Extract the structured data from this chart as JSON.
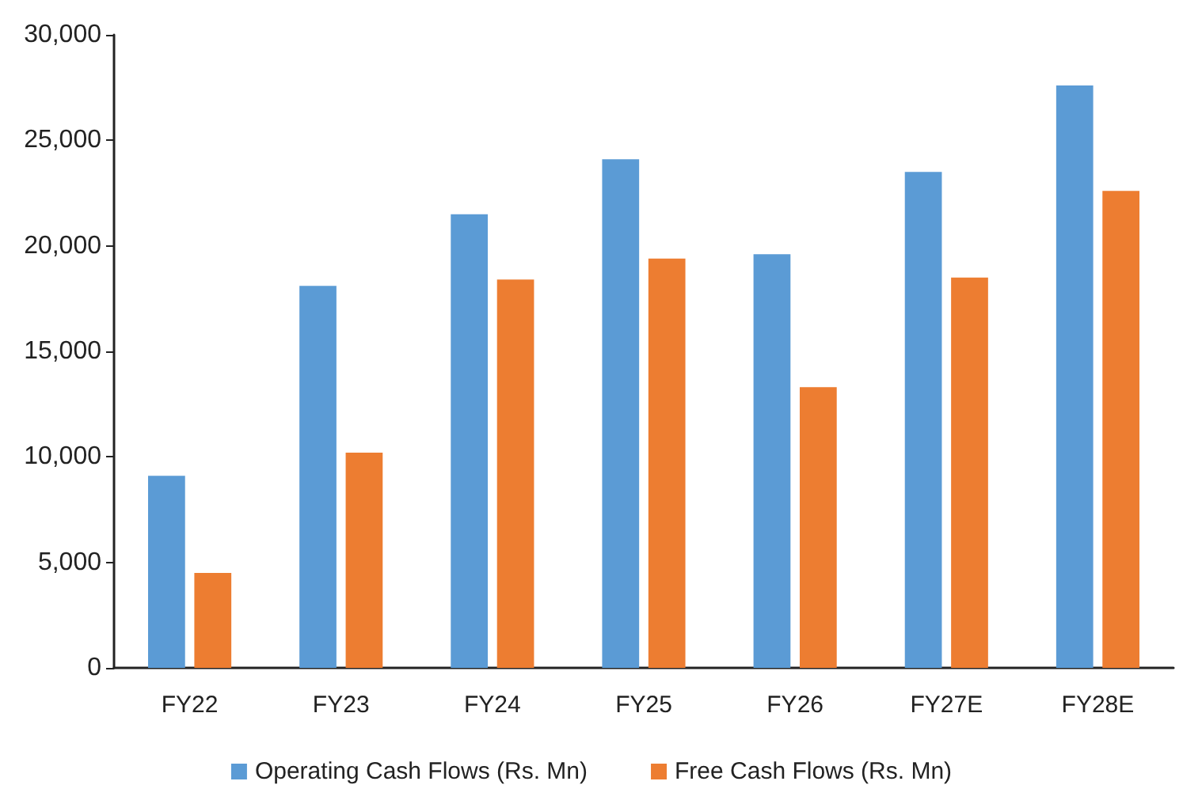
{
  "chart_data": {
    "type": "bar",
    "categories": [
      "FY22",
      "FY23",
      "FY24",
      "FY25",
      "FY26",
      "FY27E",
      "FY28E"
    ],
    "series": [
      {
        "name": "Operating Cash Flows (Rs. Mn)",
        "color": "#5b9bd5",
        "values": [
          9100,
          18100,
          21500,
          24100,
          19600,
          23500,
          27600
        ]
      },
      {
        "name": "Free Cash Flows (Rs. Mn)",
        "color": "#ed7d31",
        "values": [
          4500,
          10200,
          18400,
          19400,
          13300,
          18500,
          22600
        ]
      }
    ],
    "ylim": [
      0,
      30000
    ],
    "yticks": [
      {
        "value": 0,
        "label": "0"
      },
      {
        "value": 5000,
        "label": "5,000"
      },
      {
        "value": 10000,
        "label": "10,000"
      },
      {
        "value": 15000,
        "label": "15,000"
      },
      {
        "value": 20000,
        "label": "20,000"
      },
      {
        "value": 25000,
        "label": "25,000"
      },
      {
        "value": 30000,
        "label": "30,000"
      }
    ],
    "grid": false,
    "legend": "bottom"
  }
}
